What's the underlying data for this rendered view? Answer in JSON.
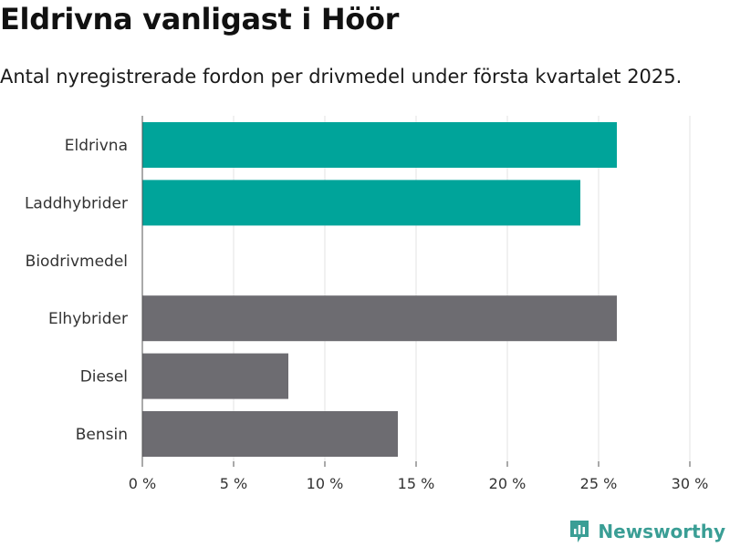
{
  "title": "Eldrivna vanligast i Höör",
  "subtitle": "Antal nyregistrerade fordon per drivmedel under första kvartalet 2025.",
  "brand": {
    "name": "Newsworthy",
    "logo_icon": "newsworthy-logo-icon"
  },
  "colors": {
    "highlight": "#00a49a",
    "default": "#6d6c71",
    "grid": "#e3e3e3",
    "axis": "#555555"
  },
  "chart_data": {
    "type": "bar",
    "orientation": "horizontal",
    "categories": [
      "Eldrivna",
      "Laddhybrider",
      "Biodrivmedel",
      "Elhybrider",
      "Diesel",
      "Bensin"
    ],
    "values": [
      26,
      24,
      0,
      26,
      8,
      14
    ],
    "highlighted": [
      true,
      true,
      true,
      false,
      false,
      false
    ],
    "xlim": [
      0,
      30
    ],
    "xticks": [
      0,
      5,
      10,
      15,
      20,
      25,
      30
    ],
    "xtick_labels": [
      "0 %",
      "5 %",
      "10 %",
      "15 %",
      "20 %",
      "25 %",
      "30 %"
    ],
    "xlabel": "",
    "ylabel": "",
    "unit": "%",
    "grid": "vertical"
  }
}
